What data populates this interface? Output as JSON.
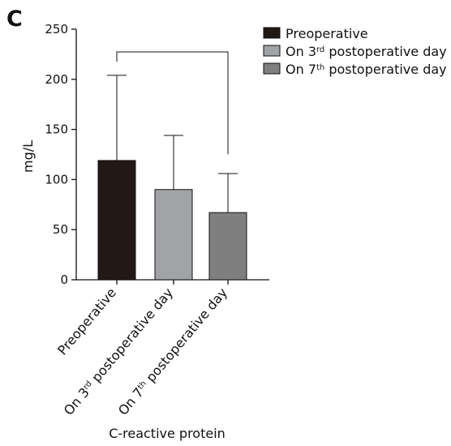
{
  "panel_label": "C",
  "chart_data": {
    "type": "bar",
    "title": "",
    "xlabel": "C-reactive protein",
    "ylabel": "mg/L",
    "ylim": [
      0,
      250
    ],
    "yticks": [
      0,
      50,
      100,
      150,
      200,
      250
    ],
    "grid": false,
    "legend_position": "top-right",
    "categories": [
      {
        "parts": [
          {
            "t": "Preoperative"
          }
        ]
      },
      {
        "parts": [
          {
            "t": "On 3"
          },
          {
            "t": "rd",
            "sup": true
          },
          {
            "t": " postoperative day"
          }
        ]
      },
      {
        "parts": [
          {
            "t": "On 7"
          },
          {
            "t": "th",
            "sup": true
          },
          {
            "t": " postoperative day"
          }
        ]
      }
    ],
    "values": [
      119,
      90,
      67
    ],
    "error_upper": [
      204,
      144,
      106
    ],
    "colors": [
      "#231815",
      "#a2a3a7",
      "#7f7f80"
    ],
    "legend": [
      {
        "parts": [
          {
            "t": "Preoperative"
          }
        ]
      },
      {
        "parts": [
          {
            "t": "On 3"
          },
          {
            "t": "rd",
            "sup": true
          },
          {
            "t": " postoperative day"
          }
        ]
      },
      {
        "parts": [
          {
            "t": "On 7"
          },
          {
            "t": "th",
            "sup": true
          },
          {
            "t": " postoperative day"
          }
        ]
      }
    ],
    "significance_bracket": {
      "from": 0,
      "to": 2
    }
  }
}
